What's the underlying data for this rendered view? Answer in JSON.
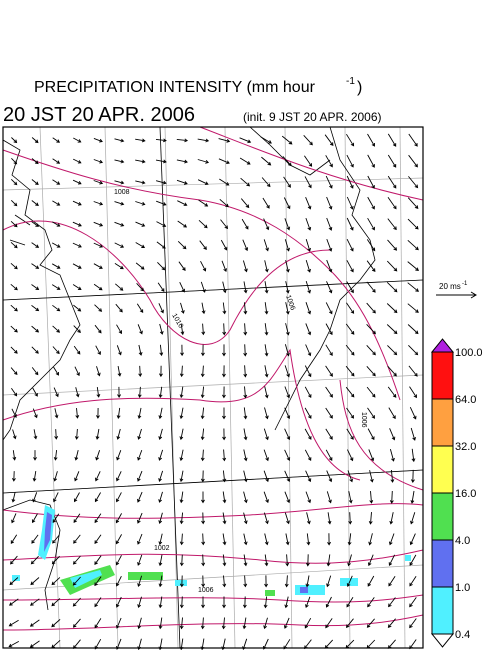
{
  "header": {
    "title": "PRECIPITATION INTENSITY (mm hour",
    "title_superscript": "-1",
    "title_end": ")",
    "valid_time": "20 JST 20 APR. 2006",
    "init_time": "(init. 9 JST 20 APR. 2006)"
  },
  "wind_scale": {
    "label": "20 ms",
    "superscript": "-1"
  },
  "colorbar": {
    "labels": [
      "100.0",
      "64.0",
      "32.0",
      "16.0",
      "4.0",
      "1.0",
      "0.4"
    ],
    "colors": [
      "#b020e0",
      "#ff1010",
      "#ffa040",
      "#ffff50",
      "#50e050",
      "#6070f0",
      "#50f0ff",
      "#ffffff"
    ]
  },
  "isobar_labels": [
    "1008",
    "1010",
    "1006",
    "1006",
    "1002",
    "1006"
  ]
}
